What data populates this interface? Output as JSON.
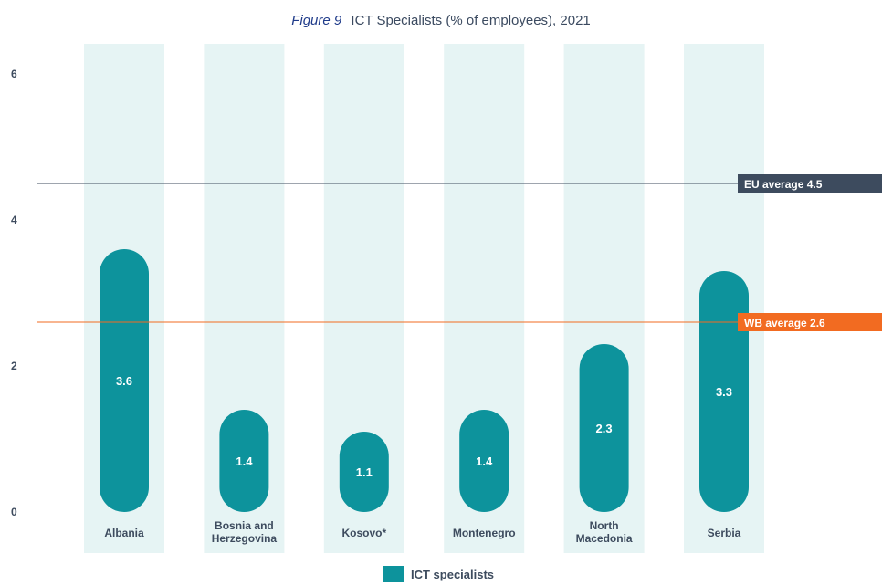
{
  "chart_data": {
    "type": "bar",
    "figure_label": "Figure 9",
    "title": "ICT Specialists (% of employees), 2021",
    "categories": [
      [
        "Albania"
      ],
      [
        "Bosnia and",
        "Herzegovina"
      ],
      [
        "Kosovo*"
      ],
      [
        "Montenegro"
      ],
      [
        "North",
        "Macedonia"
      ],
      [
        "Serbia"
      ]
    ],
    "series": [
      {
        "name": "ICT specialists",
        "values": [
          3.6,
          1.4,
          1.1,
          1.4,
          2.3,
          3.3
        ]
      }
    ],
    "ylim": [
      0,
      6
    ],
    "yticks": [
      0,
      2,
      4,
      6
    ],
    "reference_lines": [
      {
        "label": "EU average 4.5",
        "value": 4.5,
        "color": "#3d4b5e"
      },
      {
        "label": "WB average 2.6",
        "value": 2.6,
        "color": "#f26b21"
      }
    ],
    "colors": {
      "bar": "#0d939c",
      "column_bg": "#e6f4f4",
      "tick_text": "#3d4b5e"
    },
    "legend": "bottom-center"
  }
}
